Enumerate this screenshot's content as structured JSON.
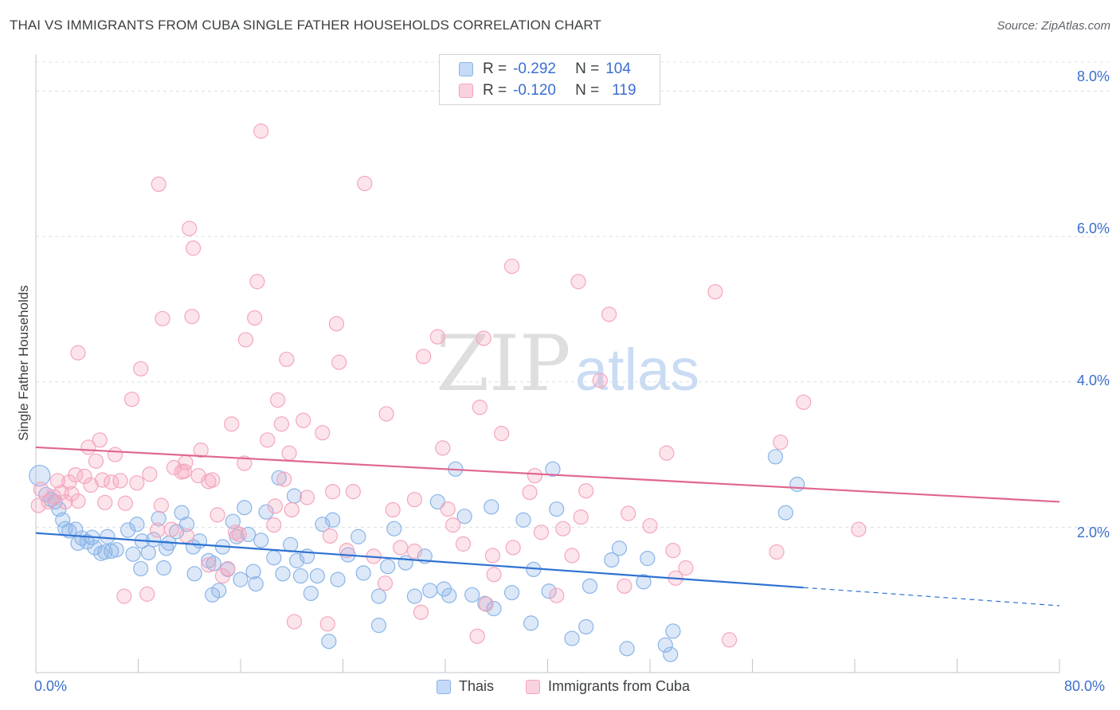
{
  "title": "THAI VS IMMIGRANTS FROM CUBA SINGLE FATHER HOUSEHOLDS CORRELATION CHART",
  "source": "Source: ZipAtlas.com",
  "watermark": {
    "zip": "ZIP",
    "atlas": "atlas"
  },
  "chart_data": {
    "type": "scatter",
    "title": "THAI VS IMMIGRANTS FROM CUBA SINGLE FATHER HOUSEHOLDS CORRELATION CHART",
    "xlabel": "",
    "ylabel": "Single Father Households",
    "xlim": [
      0,
      80
    ],
    "ylim": [
      0,
      8.4
    ],
    "x_tick_labels": {
      "min": "0.0%",
      "max": "80.0%"
    },
    "y_ticks": [
      {
        "value": 2,
        "label": "2.0%"
      },
      {
        "value": 4,
        "label": "4.0%"
      },
      {
        "value": 6,
        "label": "6.0%"
      },
      {
        "value": 8,
        "label": "8.0%"
      }
    ],
    "grid": true,
    "legend_position": "top-center",
    "series": [
      {
        "name": "Thais",
        "color": "#8ab4e8",
        "line_color": "#2e72d2",
        "R": "-0.292",
        "N": "104",
        "trend": {
          "x0": 0,
          "y0": 1.92,
          "x1": 60,
          "y1": 1.17,
          "dash_to_x": 80,
          "dash_to_y": 0.92
        },
        "points": [
          [
            0.3,
            2.71
          ],
          [
            0.8,
            2.45
          ],
          [
            1.2,
            2.38
          ],
          [
            1.5,
            2.35
          ],
          [
            1.8,
            2.25
          ],
          [
            2.1,
            2.1
          ],
          [
            2.3,
            1.98
          ],
          [
            2.6,
            1.95
          ],
          [
            3.1,
            1.97
          ],
          [
            3.3,
            1.78
          ],
          [
            3.6,
            1.85
          ],
          [
            4.0,
            1.8
          ],
          [
            4.4,
            1.86
          ],
          [
            4.6,
            1.72
          ],
          [
            5.1,
            1.64
          ],
          [
            5.4,
            1.66
          ],
          [
            5.9,
            1.67
          ],
          [
            6.3,
            1.69
          ],
          [
            5.6,
            1.87
          ],
          [
            7.2,
            1.96
          ],
          [
            7.6,
            1.63
          ],
          [
            7.9,
            2.04
          ],
          [
            8.3,
            1.81
          ],
          [
            8.2,
            1.43
          ],
          [
            8.8,
            1.65
          ],
          [
            9.2,
            1.83
          ],
          [
            9.6,
            2.12
          ],
          [
            10.0,
            1.44
          ],
          [
            10.2,
            1.71
          ],
          [
            10.4,
            1.78
          ],
          [
            11.0,
            1.94
          ],
          [
            11.4,
            2.2
          ],
          [
            11.8,
            2.04
          ],
          [
            12.3,
            1.73
          ],
          [
            12.4,
            1.36
          ],
          [
            12.8,
            1.81
          ],
          [
            13.5,
            1.54
          ],
          [
            13.8,
            1.07
          ],
          [
            13.9,
            1.5
          ],
          [
            14.3,
            1.13
          ],
          [
            14.6,
            1.73
          ],
          [
            15.0,
            1.42
          ],
          [
            15.4,
            2.08
          ],
          [
            15.7,
            1.87
          ],
          [
            16.0,
            1.28
          ],
          [
            16.3,
            2.27
          ],
          [
            16.6,
            1.9
          ],
          [
            17.0,
            1.39
          ],
          [
            17.2,
            1.22
          ],
          [
            17.6,
            1.82
          ],
          [
            18.0,
            2.21
          ],
          [
            18.6,
            1.58
          ],
          [
            19.0,
            2.68
          ],
          [
            19.3,
            1.36
          ],
          [
            19.9,
            1.76
          ],
          [
            20.2,
            2.43
          ],
          [
            20.4,
            1.54
          ],
          [
            20.7,
            1.33
          ],
          [
            21.2,
            1.6
          ],
          [
            21.5,
            1.09
          ],
          [
            22.0,
            1.33
          ],
          [
            22.4,
            2.04
          ],
          [
            22.9,
            0.43
          ],
          [
            23.2,
            2.1
          ],
          [
            23.6,
            1.28
          ],
          [
            24.4,
            1.62
          ],
          [
            25.2,
            1.87
          ],
          [
            25.6,
            1.37
          ],
          [
            26.8,
            1.05
          ],
          [
            26.8,
            0.65
          ],
          [
            27.5,
            1.46
          ],
          [
            28.0,
            1.98
          ],
          [
            28.9,
            1.51
          ],
          [
            29.6,
            1.05
          ],
          [
            30.4,
            1.6
          ],
          [
            30.8,
            1.13
          ],
          [
            31.4,
            2.35
          ],
          [
            31.9,
            1.15
          ],
          [
            32.3,
            1.06
          ],
          [
            32.8,
            2.8
          ],
          [
            33.5,
            2.15
          ],
          [
            34.1,
            1.07
          ],
          [
            35.1,
            0.95
          ],
          [
            35.6,
            2.28
          ],
          [
            35.8,
            0.88
          ],
          [
            37.2,
            1.1
          ],
          [
            38.9,
            1.42
          ],
          [
            38.7,
            0.68
          ],
          [
            38.1,
            2.1
          ],
          [
            40.1,
            1.12
          ],
          [
            40.4,
            2.8
          ],
          [
            40.7,
            2.25
          ],
          [
            41.9,
            0.47
          ],
          [
            43.0,
            0.63
          ],
          [
            43.3,
            1.19
          ],
          [
            45.0,
            1.55
          ],
          [
            45.6,
            1.71
          ],
          [
            46.2,
            0.33
          ],
          [
            47.5,
            1.25
          ],
          [
            47.8,
            1.57
          ],
          [
            49.2,
            0.38
          ],
          [
            49.6,
            0.25
          ],
          [
            49.8,
            0.57
          ],
          [
            57.8,
            2.97
          ],
          [
            58.6,
            2.2
          ],
          [
            59.5,
            2.59
          ]
        ]
      },
      {
        "name": "Immigrants from Cuba",
        "color": "#f4a6bd",
        "line_color": "#e0678f",
        "R": "-0.120",
        "N": "119",
        "trend": {
          "x0": 0,
          "y0": 3.1,
          "x1": 80,
          "y1": 2.35
        },
        "points": [
          [
            0.2,
            2.3
          ],
          [
            0.4,
            2.52
          ],
          [
            1.0,
            2.35
          ],
          [
            1.4,
            2.42
          ],
          [
            1.7,
            2.64
          ],
          [
            2.0,
            2.48
          ],
          [
            2.3,
            2.35
          ],
          [
            2.6,
            2.62
          ],
          [
            2.8,
            2.46
          ],
          [
            3.1,
            2.72
          ],
          [
            3.3,
            2.36
          ],
          [
            3.3,
            4.4
          ],
          [
            3.8,
            2.7
          ],
          [
            4.1,
            3.1
          ],
          [
            4.3,
            2.58
          ],
          [
            4.7,
            2.91
          ],
          [
            5.0,
            3.2
          ],
          [
            5.2,
            2.65
          ],
          [
            5.4,
            2.34
          ],
          [
            5.9,
            2.62
          ],
          [
            6.2,
            3.0
          ],
          [
            6.6,
            2.64
          ],
          [
            6.9,
            1.05
          ],
          [
            7.0,
            2.33
          ],
          [
            7.5,
            3.76
          ],
          [
            7.9,
            2.61
          ],
          [
            8.2,
            4.18
          ],
          [
            8.7,
            1.08
          ],
          [
            8.9,
            2.73
          ],
          [
            9.5,
            1.96
          ],
          [
            9.6,
            6.72
          ],
          [
            9.8,
            2.3
          ],
          [
            9.9,
            4.87
          ],
          [
            10.6,
            1.97
          ],
          [
            10.8,
            2.82
          ],
          [
            11.4,
            2.76
          ],
          [
            11.6,
            2.77
          ],
          [
            11.7,
            2.89
          ],
          [
            11.8,
            1.88
          ],
          [
            12.0,
            6.11
          ],
          [
            12.2,
            4.9
          ],
          [
            12.3,
            5.84
          ],
          [
            12.7,
            2.71
          ],
          [
            12.9,
            3.06
          ],
          [
            13.5,
            1.48
          ],
          [
            13.5,
            2.63
          ],
          [
            13.8,
            2.65
          ],
          [
            14.2,
            2.17
          ],
          [
            14.6,
            1.33
          ],
          [
            15.0,
            1.43
          ],
          [
            15.3,
            3.42
          ],
          [
            15.6,
            1.93
          ],
          [
            15.9,
            1.9
          ],
          [
            16.3,
            2.88
          ],
          [
            16.4,
            4.58
          ],
          [
            17.1,
            4.88
          ],
          [
            17.3,
            5.38
          ],
          [
            17.6,
            7.45
          ],
          [
            18.1,
            3.2
          ],
          [
            18.6,
            2.03
          ],
          [
            18.7,
            2.29
          ],
          [
            18.9,
            3.75
          ],
          [
            19.2,
            3.42
          ],
          [
            19.4,
            2.66
          ],
          [
            19.6,
            4.31
          ],
          [
            19.8,
            3.02
          ],
          [
            20.0,
            2.24
          ],
          [
            20.2,
            0.7
          ],
          [
            20.9,
            3.47
          ],
          [
            21.2,
            2.41
          ],
          [
            22.4,
            3.3
          ],
          [
            22.8,
            0.67
          ],
          [
            23.0,
            1.88
          ],
          [
            23.2,
            2.49
          ],
          [
            23.5,
            4.8
          ],
          [
            23.7,
            4.27
          ],
          [
            24.3,
            1.68
          ],
          [
            24.8,
            2.49
          ],
          [
            25.7,
            6.73
          ],
          [
            26.4,
            1.6
          ],
          [
            27.3,
            1.23
          ],
          [
            27.4,
            3.56
          ],
          [
            27.9,
            2.24
          ],
          [
            28.5,
            1.72
          ],
          [
            29.6,
            1.67
          ],
          [
            29.6,
            2.38
          ],
          [
            30.1,
            0.83
          ],
          [
            30.3,
            4.35
          ],
          [
            31.4,
            4.62
          ],
          [
            31.8,
            3.09
          ],
          [
            32.2,
            2.25
          ],
          [
            32.6,
            2.03
          ],
          [
            33.4,
            1.77
          ],
          [
            34.5,
            0.5
          ],
          [
            34.7,
            3.65
          ],
          [
            35.0,
            4.6
          ],
          [
            35.2,
            0.94
          ],
          [
            35.7,
            1.61
          ],
          [
            35.8,
            1.35
          ],
          [
            36.4,
            3.29
          ],
          [
            37.2,
            5.59
          ],
          [
            37.3,
            1.72
          ],
          [
            38.6,
            2.48
          ],
          [
            39.0,
            2.71
          ],
          [
            39.5,
            1.93
          ],
          [
            40.7,
            1.06
          ],
          [
            41.2,
            1.98
          ],
          [
            41.9,
            1.61
          ],
          [
            42.4,
            5.38
          ],
          [
            42.6,
            2.14
          ],
          [
            43.0,
            2.5
          ],
          [
            44.1,
            4.02
          ],
          [
            44.8,
            4.93
          ],
          [
            46.0,
            1.19
          ],
          [
            46.3,
            2.19
          ],
          [
            48.0,
            2.02
          ],
          [
            49.3,
            3.02
          ],
          [
            49.8,
            1.68
          ],
          [
            50.0,
            1.3
          ],
          [
            50.8,
            1.44
          ],
          [
            53.1,
            5.24
          ],
          [
            54.2,
            0.45
          ],
          [
            57.9,
            1.66
          ],
          [
            58.2,
            3.17
          ],
          [
            60.0,
            3.72
          ],
          [
            64.3,
            1.97
          ]
        ]
      }
    ]
  },
  "legend": {
    "r_label": "R =",
    "n_label": "N =",
    "rows": [
      {
        "r": "-0.292",
        "n": "104",
        "color": "#c5daf6",
        "border": "#8ab4e8"
      },
      {
        "r": "-0.120",
        "n": "119",
        "color": "#fad1de",
        "border": "#f4a6bd"
      }
    ]
  },
  "bottom_legend": [
    {
      "label": "Thais",
      "color": "#c5daf6",
      "border": "#8ab4e8"
    },
    {
      "label": "Immigrants from Cuba",
      "color": "#fad1de",
      "border": "#f4a6bd"
    }
  ]
}
